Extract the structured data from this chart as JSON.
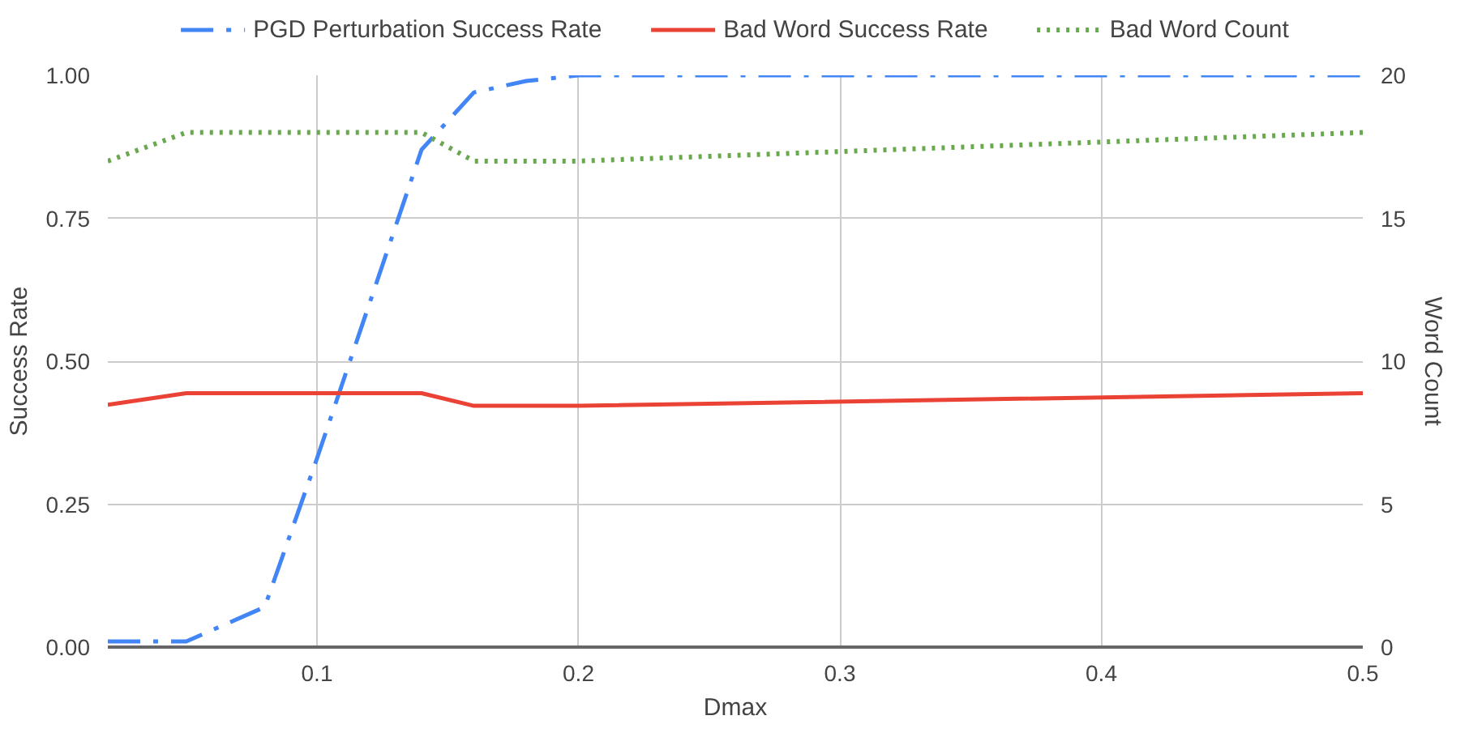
{
  "chart_data": {
    "type": "line",
    "xlabel": "Dmax",
    "ylabel": "Success Rate",
    "y2label": "Word Count",
    "x": [
      0.02,
      0.05,
      0.08,
      0.1,
      0.12,
      0.14,
      0.16,
      0.18,
      0.2,
      0.5
    ],
    "series": [
      {
        "name": "PGD Perturbation Success Rate",
        "color": "#4285f4",
        "line_style": "dashdot",
        "values": [
          0.01,
          0.01,
          0.07,
          0.33,
          0.6,
          0.87,
          0.97,
          0.99,
          1.0,
          1.0
        ]
      },
      {
        "name": "Bad Word Success Rate",
        "color": "#ea4335",
        "line_style": "solid",
        "x": [
          0.02,
          0.05,
          0.14,
          0.16,
          0.2,
          0.5
        ],
        "values": [
          0.424,
          0.444,
          0.444,
          0.422,
          0.422,
          0.444
        ]
      },
      {
        "name": "Bad Word Count",
        "color": "#6aa84f",
        "line_style": "dotted",
        "axis": "y2",
        "x": [
          0.02,
          0.05,
          0.14,
          0.16,
          0.2,
          0.5
        ],
        "values": [
          17,
          18,
          18,
          17,
          17,
          18
        ]
      }
    ],
    "xlim": [
      0.02,
      0.5
    ],
    "xticks": [
      0.1,
      0.2,
      0.3,
      0.4,
      0.5
    ],
    "ylim": [
      0,
      1
    ],
    "yticks": [
      {
        "value": 0,
        "label": "0.00"
      },
      {
        "value": 0.25,
        "label": "0.25"
      },
      {
        "value": 0.5,
        "label": "0.50"
      },
      {
        "value": 0.75,
        "label": "0.75"
      },
      {
        "value": 1,
        "label": "1.00"
      }
    ],
    "y2lim": [
      0,
      20
    ],
    "y2ticks": [
      0,
      5,
      10,
      15,
      20
    ],
    "grid": true,
    "legend": "top",
    "marker": "none"
  }
}
